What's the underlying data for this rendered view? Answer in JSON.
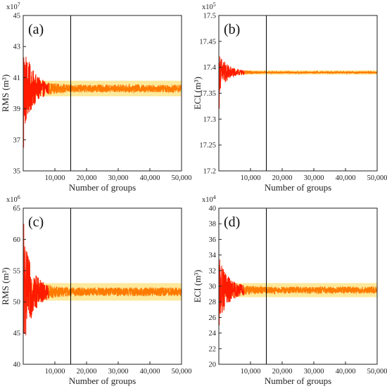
{
  "colors": {
    "noise": "#ff1a00",
    "trace": "#ff7a00",
    "band": "#fce58a",
    "frame": "#222222",
    "divider": "#000000"
  },
  "chart_data": [
    {
      "type": "line",
      "panel_label": "(a)",
      "multiplier": "x10^7",
      "multiplier_base": "x10",
      "multiplier_exp": "7",
      "ylabel": "RMS (m³)",
      "xlabel": "Number of groups",
      "xlim": [
        0,
        50000
      ],
      "ylim": [
        35,
        45
      ],
      "xticks": [
        10000,
        20000,
        30000,
        40000,
        50000
      ],
      "xticklabels": [
        "10,000",
        "20,000",
        "30,000",
        "40,000",
        "50,000"
      ],
      "yticks": [
        35,
        37,
        39,
        41,
        43,
        45
      ],
      "yticklabels": [
        "35",
        "37",
        "39",
        "41",
        "43",
        "45"
      ],
      "divider_x": 15000,
      "band": [
        39.8,
        40.8
      ],
      "series": [
        {
          "converged_value": 40.3,
          "initial_min": 36.5,
          "initial_max": 42.3,
          "noise_amplitude": 0.25
        }
      ]
    },
    {
      "type": "line",
      "panel_label": "(b)",
      "multiplier": "x10^5",
      "multiplier_base": "x10",
      "multiplier_exp": "5",
      "ylabel": "ECI (m³)",
      "xlabel": "Number of groups",
      "xlim": [
        0,
        50000
      ],
      "ylim": [
        17.2,
        17.5
      ],
      "xticks": [
        10000,
        20000,
        30000,
        40000,
        50000
      ],
      "xticklabels": [
        "10,000",
        "20,000",
        "30,000",
        "40,000",
        "50,000"
      ],
      "yticks": [
        17.2,
        17.25,
        17.3,
        17.35,
        17.4,
        17.45,
        17.5
      ],
      "yticklabels": [
        "17.2",
        "17.25",
        "17.3",
        "17.35",
        "17.4",
        "17.45",
        "17.5"
      ],
      "divider_x": 15000,
      "band": [
        17.386,
        17.394
      ],
      "series": [
        {
          "converged_value": 17.39,
          "initial_min": 17.32,
          "initial_max": 17.395,
          "noise_amplitude": 0.002
        }
      ]
    },
    {
      "type": "line",
      "panel_label": "(c)",
      "multiplier": "x10^6",
      "multiplier_base": "x10",
      "multiplier_exp": "6",
      "ylabel": "RMS (m³)",
      "xlabel": "Number of groups",
      "xlim": [
        0,
        50000
      ],
      "ylim": [
        40,
        65
      ],
      "xticks": [
        10000,
        20000,
        30000,
        40000,
        50000
      ],
      "xticklabels": [
        "10,000",
        "20,000",
        "30,000",
        "40,000",
        "50,000"
      ],
      "yticks": [
        40,
        45,
        50,
        55,
        60,
        65
      ],
      "yticklabels": [
        "40",
        "45",
        "50",
        "55",
        "60",
        "65"
      ],
      "divider_x": 15000,
      "band": [
        50.2,
        53.0
      ],
      "series": [
        {
          "converged_value": 51.6,
          "initial_min": 45.0,
          "initial_max": 62.5,
          "noise_amplitude": 0.7
        }
      ]
    },
    {
      "type": "line",
      "panel_label": "(d)",
      "multiplier": "x10^4",
      "multiplier_base": "x10",
      "multiplier_exp": "4",
      "ylabel": "ECI (m³)",
      "xlabel": "Number of groups",
      "xlim": [
        0,
        50000
      ],
      "ylim": [
        20,
        40
      ],
      "xticks": [
        10000,
        20000,
        30000,
        40000,
        50000
      ],
      "xticklabels": [
        "10,000",
        "20,000",
        "30,000",
        "40,000",
        "50,000"
      ],
      "yticks": [
        20,
        22,
        24,
        26,
        28,
        30,
        32,
        34,
        36,
        38,
        40
      ],
      "yticklabels": [
        "20",
        "22",
        "24",
        "26",
        "28",
        "30",
        "32",
        "34",
        "36",
        "38",
        "40"
      ],
      "divider_x": 15000,
      "band": [
        28.6,
        30.4
      ],
      "series": [
        {
          "converged_value": 29.5,
          "initial_min": 25.0,
          "initial_max": 32.7,
          "noise_amplitude": 0.45
        }
      ]
    }
  ]
}
